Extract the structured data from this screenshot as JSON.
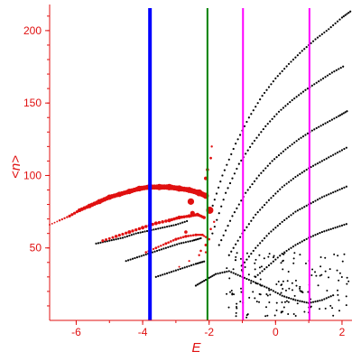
{
  "chart_data": {
    "type": "scatter",
    "title": "",
    "xlabel": "E",
    "ylabel": "<n>",
    "xlim": [
      -6.8,
      2.3
    ],
    "ylim": [
      0,
      218
    ],
    "xticks": [
      -6,
      -4,
      -2,
      0,
      2
    ],
    "yticks": [
      50,
      100,
      150,
      200
    ],
    "axis_color": "#e01010",
    "vertical_lines": [
      {
        "x": -3.78,
        "color": "#0000ff",
        "style": "thick"
      },
      {
        "x": -2.05,
        "color": "#008000",
        "style": "normal"
      },
      {
        "x": -0.98,
        "color": "#ff00ff",
        "style": "normal"
      },
      {
        "x": 1.02,
        "color": "#ff00ff",
        "style": "normal"
      }
    ],
    "series": [
      {
        "color": "#e01010",
        "marker": "circle-sized",
        "points": [
          [
            -6.8,
            66,
            1
          ],
          [
            -6.5,
            69,
            1.2
          ],
          [
            -6.2,
            72,
            1.6
          ],
          [
            -5.9,
            76,
            2.2
          ],
          [
            -5.6,
            79,
            2.6
          ],
          [
            -5.3,
            82,
            2.9
          ],
          [
            -5.0,
            85,
            3.0
          ],
          [
            -4.7,
            87,
            3.0
          ],
          [
            -4.4,
            89,
            3.1
          ],
          [
            -4.1,
            91,
            3.2
          ],
          [
            -3.8,
            92,
            3.3
          ],
          [
            -3.5,
            92,
            3.5
          ],
          [
            -3.2,
            92,
            3.6
          ],
          [
            -2.9,
            91,
            3.5
          ],
          [
            -2.6,
            90,
            3.4
          ],
          [
            -2.3,
            88,
            3.8
          ],
          [
            -2.1,
            86,
            3.4
          ],
          [
            -2.1,
            98,
            2.0
          ],
          [
            -2.05,
            104,
            1.8
          ],
          [
            -1.95,
            112,
            1.4
          ],
          [
            -1.92,
            120,
            1.2
          ],
          [
            -1.98,
            76,
            4.0
          ],
          [
            -2.55,
            82,
            3.6
          ],
          [
            -5.2,
            55,
            1.6
          ],
          [
            -4.8,
            58,
            1.8
          ],
          [
            -4.4,
            61,
            2.0
          ],
          [
            -4.0,
            64,
            2.0
          ],
          [
            -3.6,
            67,
            2.1
          ],
          [
            -3.2,
            69,
            2.1
          ],
          [
            -2.9,
            71,
            2.1
          ],
          [
            -2.6,
            72,
            2.0
          ],
          [
            -2.35,
            73,
            2.0
          ],
          [
            -2.15,
            71,
            1.8
          ],
          [
            -2.5,
            74,
            2.6
          ],
          [
            -3.9,
            47,
            1.3
          ],
          [
            -3.6,
            50,
            1.4
          ],
          [
            -3.3,
            53,
            1.5
          ],
          [
            -3.0,
            56,
            1.6
          ],
          [
            -2.7,
            58,
            1.6
          ],
          [
            -2.4,
            59,
            1.5
          ],
          [
            -2.2,
            59,
            1.4
          ],
          [
            -2.0,
            56,
            1.3
          ],
          [
            -2.7,
            61,
            1.8
          ],
          [
            -2.9,
            37,
            1.0
          ],
          [
            -2.6,
            41,
            1.1
          ],
          [
            -2.3,
            45,
            1.2
          ],
          [
            -2.1,
            47,
            1.2
          ],
          [
            -2.1,
            52,
            1.5
          ],
          [
            -2.25,
            48,
            1.3
          ],
          [
            -1.95,
            63,
            1.3
          ],
          [
            -1.85,
            68,
            1.2
          ]
        ]
      },
      {
        "color": "#000000",
        "marker": "dot",
        "curves": [
          {
            "x": [
              -1.95,
              -1.6,
              -1.2,
              -0.8,
              -0.4,
              0.0,
              0.4,
              0.8,
              1.2,
              1.6,
              2.0,
              2.3
            ],
            "y": [
              75,
              100,
              122,
              140,
              155,
              167,
              177,
              186,
              194,
              201,
              209,
              214
            ]
          },
          {
            "x": [
              -1.9,
              -1.5,
              -1.1,
              -0.7,
              -0.3,
              0.1,
              0.5,
              0.9,
              1.3,
              1.7,
              2.1
            ],
            "y": [
              60,
              88,
              108,
              122,
              134,
              144,
              152,
              159,
              165,
              171,
              176
            ]
          },
          {
            "x": [
              -1.7,
              -1.3,
              -0.9,
              -0.5,
              -0.1,
              0.3,
              0.7,
              1.1,
              1.5,
              1.9,
              2.2
            ],
            "y": [
              52,
              72,
              88,
              100,
              110,
              118,
              125,
              131,
              136,
              141,
              145
            ]
          },
          {
            "x": [
              -1.4,
              -1.0,
              -0.6,
              -0.2,
              0.2,
              0.6,
              1.0,
              1.4,
              1.8,
              2.2
            ],
            "y": [
              45,
              60,
              73,
              83,
              92,
              99,
              105,
              110,
              115,
              120
            ]
          },
          {
            "x": [
              -1.0,
              -0.6,
              -0.2,
              0.2,
              0.6,
              1.0,
              1.4,
              1.8,
              2.2
            ],
            "y": [
              38,
              50,
              60,
              68,
              75,
              80,
              85,
              89,
              93
            ]
          },
          {
            "x": [
              -0.6,
              -0.2,
              0.2,
              0.6,
              1.0,
              1.4,
              1.8,
              2.2
            ],
            "y": [
              30,
              38,
              46,
              52,
              57,
              61,
              64,
              67
            ]
          },
          {
            "x": [
              -5.4,
              -5.0,
              -4.6,
              -4.2,
              -3.8,
              -3.4,
              -3.0,
              -2.6
            ],
            "y": [
              53,
              55,
              57,
              60,
              62,
              64,
              66,
              69
            ]
          },
          {
            "x": [
              -4.5,
              -4.1,
              -3.7,
              -3.3,
              -2.9,
              -2.5,
              -2.2
            ],
            "y": [
              41,
              44,
              47,
              50,
              53,
              55,
              57
            ]
          },
          {
            "x": [
              -3.6,
              -3.2,
              -2.8,
              -2.4,
              -2.1
            ],
            "y": [
              30,
              33,
              36,
              39,
              41
            ]
          },
          {
            "x": [
              -2.4,
              -2.1,
              -1.8,
              -1.4,
              -1.0,
              -0.6,
              -0.2,
              0.2,
              0.6,
              1.0,
              1.4,
              1.8
            ],
            "y": [
              24,
              28,
              32,
              34,
              30,
              26,
              22,
              17,
              14,
              12,
              14,
              18
            ]
          }
        ]
      }
    ],
    "grid": false
  }
}
